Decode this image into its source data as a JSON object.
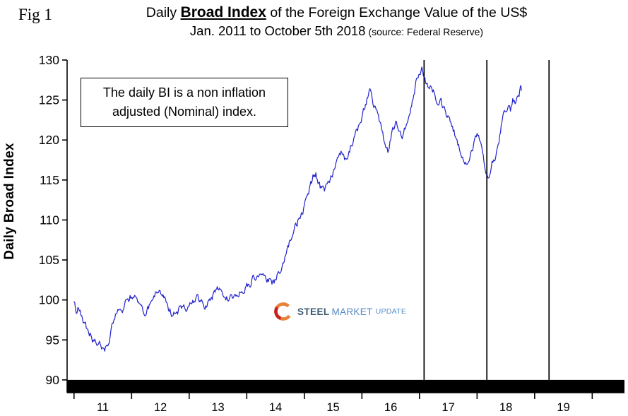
{
  "header": {
    "fig_label": "Fig 1",
    "title_prefix": "Daily ",
    "title_emphasis": "Broad Index",
    "title_suffix": " of the Foreign Exchange Value of the US$",
    "subtitle": "Jan. 2011 to October 5th 2018",
    "source": "(source: Federal Reserve)"
  },
  "annotation": {
    "line1": "The daily BI is a non inflation",
    "line2": "adjusted (Nominal) index."
  },
  "logo": {
    "steel": "STEEL",
    "market": "MARKET",
    "update": "UPDATE"
  },
  "chart_data": {
    "type": "line",
    "title": "Daily Broad Index of the Foreign Exchange Value of the US$",
    "subtitle": "Jan. 2011 to October 5th 2018 (source: Federal Reserve)",
    "xlabel": "",
    "ylabel": "Daily Broad Index",
    "x_domain": [
      2010.88,
      2020.56
    ],
    "y_domain": [
      88.4,
      130
    ],
    "y_ticks": [
      90,
      95,
      100,
      105,
      110,
      115,
      120,
      125,
      130
    ],
    "x_band_ticks": [
      2011,
      2012,
      2013,
      2014,
      2015,
      2016,
      2017,
      2018,
      2019,
      2020
    ],
    "x_band_labels": [
      "11",
      "12",
      "13",
      "14",
      "15",
      "16",
      "17",
      "18",
      "19"
    ],
    "grid": false,
    "legend": false,
    "line_color": "#2121cc",
    "axis_color": "#000000",
    "event_lines_x": [
      2017.08,
      2018.17,
      2019.25
    ],
    "bottom_band": {
      "from_y": 90,
      "color": "#000000"
    },
    "noise": {
      "seed": 20181005,
      "amplitude": 0.4,
      "step": 0.012
    },
    "series": [
      {
        "name": "Daily Broad Index",
        "points": [
          [
            2011.0,
            99.8
          ],
          [
            2011.04,
            98.6
          ],
          [
            2011.08,
            99.2
          ],
          [
            2011.12,
            98.2
          ],
          [
            2011.16,
            97.3
          ],
          [
            2011.2,
            97.0
          ],
          [
            2011.24,
            96.2
          ],
          [
            2011.28,
            95.7
          ],
          [
            2011.32,
            95.1
          ],
          [
            2011.36,
            95.4
          ],
          [
            2011.4,
            94.8
          ],
          [
            2011.44,
            95.2
          ],
          [
            2011.48,
            94.4
          ],
          [
            2011.52,
            94.1
          ],
          [
            2011.56,
            94.0
          ],
          [
            2011.6,
            94.6
          ],
          [
            2011.64,
            95.8
          ],
          [
            2011.68,
            97.2
          ],
          [
            2011.72,
            98.1
          ],
          [
            2011.76,
            98.6
          ],
          [
            2011.8,
            99.3
          ],
          [
            2011.84,
            98.8
          ],
          [
            2011.88,
            99.5
          ],
          [
            2011.92,
            99.9
          ],
          [
            2011.96,
            100.2
          ],
          [
            2012.0,
            100.6
          ],
          [
            2012.04,
            100.8
          ],
          [
            2012.08,
            100.1
          ],
          [
            2012.12,
            99.5
          ],
          [
            2012.16,
            99.0
          ],
          [
            2012.2,
            98.5
          ],
          [
            2012.24,
            98.1
          ],
          [
            2012.28,
            98.7
          ],
          [
            2012.32,
            99.4
          ],
          [
            2012.36,
            100.0
          ],
          [
            2012.4,
            100.7
          ],
          [
            2012.44,
            101.2
          ],
          [
            2012.48,
            101.0
          ],
          [
            2012.52,
            100.6
          ],
          [
            2012.56,
            100.2
          ],
          [
            2012.6,
            99.7
          ],
          [
            2012.64,
            99.0
          ],
          [
            2012.68,
            98.5
          ],
          [
            2012.72,
            98.2
          ],
          [
            2012.76,
            98.3
          ],
          [
            2012.8,
            98.6
          ],
          [
            2012.84,
            98.9
          ],
          [
            2012.88,
            99.1
          ],
          [
            2012.92,
            99.3
          ],
          [
            2012.96,
            99.1
          ],
          [
            2013.0,
            99.2
          ],
          [
            2013.05,
            99.6
          ],
          [
            2013.1,
            100.0
          ],
          [
            2013.15,
            100.3
          ],
          [
            2013.2,
            100.0
          ],
          [
            2013.25,
            99.5
          ],
          [
            2013.3,
            99.2
          ],
          [
            2013.35,
            99.7
          ],
          [
            2013.4,
            100.3
          ],
          [
            2013.45,
            100.9
          ],
          [
            2013.5,
            101.3
          ],
          [
            2013.55,
            101.1
          ],
          [
            2013.6,
            100.7
          ],
          [
            2013.65,
            100.3
          ],
          [
            2013.7,
            100.1
          ],
          [
            2013.75,
            100.3
          ],
          [
            2013.8,
            100.6
          ],
          [
            2013.85,
            100.9
          ],
          [
            2013.9,
            101.1
          ],
          [
            2013.95,
            101.4
          ],
          [
            2014.0,
            101.8
          ],
          [
            2014.05,
            102.1
          ],
          [
            2014.1,
            102.5
          ],
          [
            2014.15,
            102.9
          ],
          [
            2014.2,
            103.3
          ],
          [
            2014.25,
            103.4
          ],
          [
            2014.3,
            103.0
          ],
          [
            2014.35,
            102.6
          ],
          [
            2014.4,
            102.2
          ],
          [
            2014.45,
            102.1
          ],
          [
            2014.5,
            102.5
          ],
          [
            2014.55,
            103.1
          ],
          [
            2014.6,
            103.9
          ],
          [
            2014.65,
            104.9
          ],
          [
            2014.7,
            106.1
          ],
          [
            2014.75,
            107.3
          ],
          [
            2014.8,
            108.4
          ],
          [
            2014.85,
            109.3
          ],
          [
            2014.9,
            110.1
          ],
          [
            2014.95,
            110.9
          ],
          [
            2015.0,
            111.6
          ],
          [
            2015.05,
            112.9
          ],
          [
            2015.1,
            114.2
          ],
          [
            2015.15,
            115.3
          ],
          [
            2015.2,
            115.6
          ],
          [
            2015.25,
            114.7
          ],
          [
            2015.3,
            113.8
          ],
          [
            2015.35,
            113.6
          ],
          [
            2015.4,
            114.4
          ],
          [
            2015.45,
            115.3
          ],
          [
            2015.5,
            116.1
          ],
          [
            2015.55,
            117.1
          ],
          [
            2015.6,
            118.1
          ],
          [
            2015.65,
            118.4
          ],
          [
            2015.7,
            117.8
          ],
          [
            2015.75,
            118.3
          ],
          [
            2015.8,
            119.1
          ],
          [
            2015.85,
            119.9
          ],
          [
            2015.9,
            120.7
          ],
          [
            2015.95,
            121.5
          ],
          [
            2016.0,
            122.5
          ],
          [
            2016.05,
            124.2
          ],
          [
            2016.1,
            125.4
          ],
          [
            2016.14,
            126.1
          ],
          [
            2016.18,
            125.2
          ],
          [
            2016.22,
            124.2
          ],
          [
            2016.26,
            123.3
          ],
          [
            2016.3,
            122.3
          ],
          [
            2016.35,
            121.0
          ],
          [
            2016.4,
            119.8
          ],
          [
            2016.45,
            118.8
          ],
          [
            2016.5,
            120.1
          ],
          [
            2016.55,
            121.4
          ],
          [
            2016.6,
            122.2
          ],
          [
            2016.65,
            121.3
          ],
          [
            2016.7,
            120.6
          ],
          [
            2016.75,
            121.6
          ],
          [
            2016.8,
            122.6
          ],
          [
            2016.85,
            124.1
          ],
          [
            2016.9,
            125.9
          ],
          [
            2016.95,
            127.4
          ],
          [
            2017.0,
            128.4
          ],
          [
            2017.04,
            128.9
          ],
          [
            2017.08,
            127.9
          ],
          [
            2017.12,
            127.1
          ],
          [
            2017.16,
            126.4
          ],
          [
            2017.2,
            127.1
          ],
          [
            2017.24,
            126.2
          ],
          [
            2017.28,
            125.3
          ],
          [
            2017.32,
            124.7
          ],
          [
            2017.36,
            125.2
          ],
          [
            2017.4,
            124.3
          ],
          [
            2017.44,
            123.6
          ],
          [
            2017.48,
            123.0
          ],
          [
            2017.52,
            122.4
          ],
          [
            2017.56,
            121.6
          ],
          [
            2017.6,
            121.1
          ],
          [
            2017.64,
            120.3
          ],
          [
            2017.68,
            119.3
          ],
          [
            2017.72,
            118.4
          ],
          [
            2017.76,
            117.6
          ],
          [
            2017.8,
            117.0
          ],
          [
            2017.84,
            116.6
          ],
          [
            2017.88,
            117.6
          ],
          [
            2017.92,
            118.8
          ],
          [
            2017.96,
            119.9
          ],
          [
            2018.0,
            120.8
          ],
          [
            2018.04,
            120.3
          ],
          [
            2018.08,
            118.9
          ],
          [
            2018.12,
            117.2
          ],
          [
            2018.16,
            115.6
          ],
          [
            2018.19,
            115.2
          ],
          [
            2018.22,
            116.0
          ],
          [
            2018.26,
            117.3
          ],
          [
            2018.3,
            117.1
          ],
          [
            2018.34,
            118.6
          ],
          [
            2018.38,
            120.1
          ],
          [
            2018.42,
            121.6
          ],
          [
            2018.46,
            122.9
          ],
          [
            2018.5,
            123.9
          ],
          [
            2018.54,
            124.2
          ],
          [
            2018.58,
            123.8
          ],
          [
            2018.62,
            124.9
          ],
          [
            2018.66,
            124.5
          ],
          [
            2018.7,
            125.6
          ],
          [
            2018.73,
            125.2
          ],
          [
            2018.75,
            126.1
          ],
          [
            2018.77,
            126.2
          ]
        ]
      }
    ]
  }
}
